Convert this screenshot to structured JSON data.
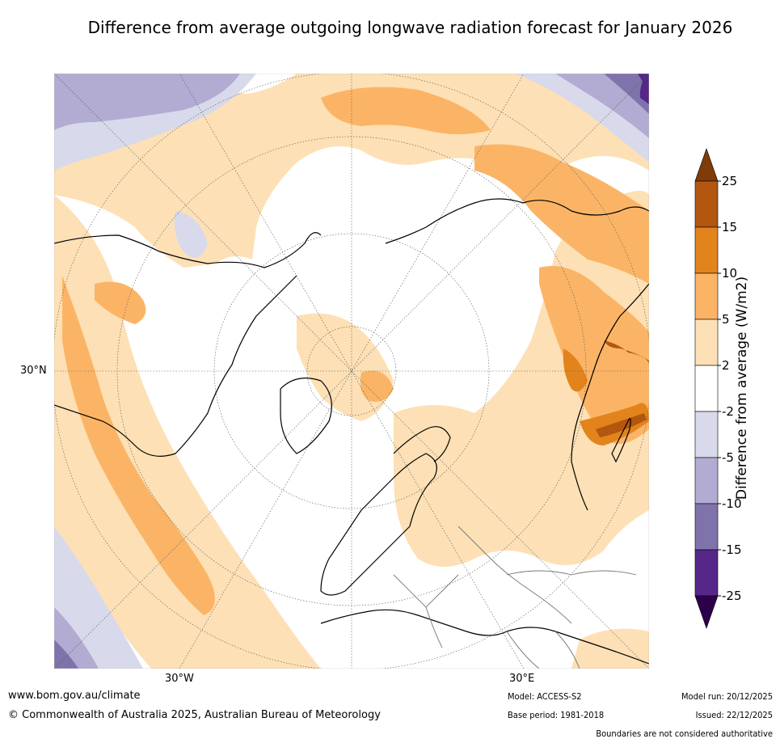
{
  "title": "Difference from average outgoing longwave radiation forecast for January 2026",
  "map": {
    "labels": {
      "lat30n": "30°N",
      "lon30w": "30°W",
      "lon30e": "30°E"
    },
    "colors": {
      "anom_2_5": "#fde0b5",
      "anom_5_10": "#fbb466",
      "anom_10_15": "#e2841b",
      "anom_15_25": "#b3560f",
      "anom_gt25": "#7f3b08",
      "anom_m2_m5": "#d8daeb",
      "anom_m5_m10": "#b2abd2",
      "anom_m10_m15": "#8073ac",
      "anom_m15_m25": "#542788",
      "anom_lt_m25": "#2d004b"
    }
  },
  "legend": {
    "title": "Difference from average (W/m2)",
    "ticks": [
      "25",
      "15",
      "10",
      "5",
      "2",
      "-2",
      "-5",
      "-10",
      "-15",
      "-25"
    ],
    "colors": [
      "#7f3b08",
      "#b3560f",
      "#e2841b",
      "#fbb466",
      "#fde0b5",
      "#ffffff",
      "#d8daeb",
      "#b2abd2",
      "#8073ac",
      "#542788",
      "#2d004b"
    ]
  },
  "footer": {
    "url": "www.bom.gov.au/climate",
    "copyright": "© Commonwealth of Australia 2025, Australian Bureau of Meteorology",
    "model": "Model: ACCESS-S2",
    "base_period": "Base period: 1981-2018",
    "model_run": "Model run: 20/12/2025",
    "issued": "Issued: 22/12/2025",
    "disclaimer": "Boundaries are not considered authoritative"
  }
}
